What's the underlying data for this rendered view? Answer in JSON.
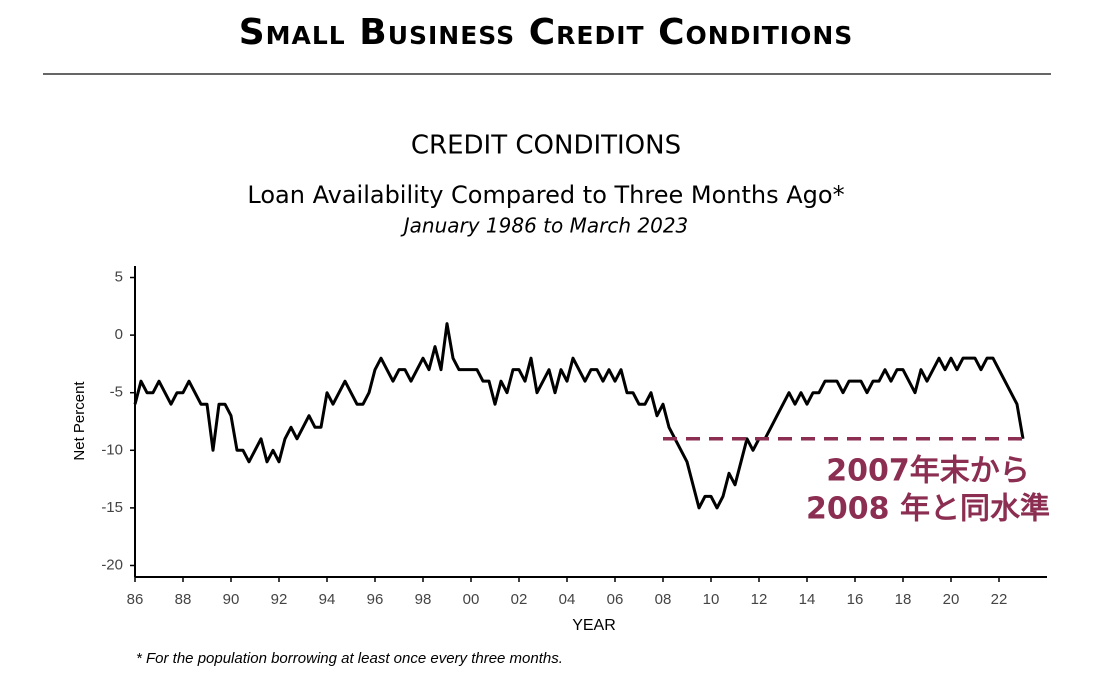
{
  "page_title": "Small Business Credit Conditions",
  "chart_data": {
    "type": "line",
    "title": "CREDIT CONDITIONS",
    "subtitle": "Loan Availability Compared to Three Months Ago*",
    "date_range": "January 1986 to March 2023",
    "x_label": "YEAR",
    "y_label": "Net Percent",
    "footnote": "* For the population borrowing at least once every three months.",
    "annotation": [
      "2007年末から",
      "2008 年と同水準"
    ],
    "reference_line": {
      "value": -9,
      "x": [
        2008,
        2023.25
      ],
      "color": "#8b2e52"
    },
    "xlim": [
      1986,
      2024
    ],
    "ylim": [
      -21,
      6
    ],
    "yticks": [
      -20,
      -15,
      -10,
      -5,
      0,
      5
    ],
    "xticks": [
      {
        "value": 1986,
        "label": "86"
      },
      {
        "value": 1988,
        "label": "88"
      },
      {
        "value": 1990,
        "label": "90"
      },
      {
        "value": 1992,
        "label": "92"
      },
      {
        "value": 1994,
        "label": "94"
      },
      {
        "value": 1996,
        "label": "96"
      },
      {
        "value": 1998,
        "label": "98"
      },
      {
        "value": 2000,
        "label": "00"
      },
      {
        "value": 2002,
        "label": "02"
      },
      {
        "value": 2004,
        "label": "04"
      },
      {
        "value": 2006,
        "label": "06"
      },
      {
        "value": 2008,
        "label": "08"
      },
      {
        "value": 2010,
        "label": "10"
      },
      {
        "value": 2012,
        "label": "12"
      },
      {
        "value": 2014,
        "label": "14"
      },
      {
        "value": 2016,
        "label": "16"
      },
      {
        "value": 2018,
        "label": "18"
      },
      {
        "value": 2020,
        "label": "20"
      },
      {
        "value": 2022,
        "label": "22"
      }
    ],
    "x": [
      1986,
      1986.25,
      1986.5,
      1986.75,
      1987,
      1987.25,
      1987.5,
      1987.75,
      1988,
      1988.25,
      1988.5,
      1988.75,
      1989,
      1989.25,
      1989.5,
      1989.75,
      1990,
      1990.25,
      1990.5,
      1990.75,
      1991,
      1991.25,
      1991.5,
      1991.75,
      1992,
      1992.25,
      1992.5,
      1992.75,
      1993,
      1993.25,
      1993.5,
      1993.75,
      1994,
      1994.25,
      1994.5,
      1994.75,
      1995,
      1995.25,
      1995.5,
      1995.75,
      1996,
      1996.25,
      1996.5,
      1996.75,
      1997,
      1997.25,
      1997.5,
      1997.75,
      1998,
      1998.25,
      1998.5,
      1998.75,
      1999,
      1999.25,
      1999.5,
      1999.75,
      2000,
      2000.25,
      2000.5,
      2000.75,
      2001,
      2001.25,
      2001.5,
      2001.75,
      2002,
      2002.25,
      2002.5,
      2002.75,
      2003,
      2003.25,
      2003.5,
      2003.75,
      2004,
      2004.25,
      2004.5,
      2004.75,
      2005,
      2005.25,
      2005.5,
      2005.75,
      2006,
      2006.25,
      2006.5,
      2006.75,
      2007,
      2007.25,
      2007.5,
      2007.75,
      2008,
      2008.25,
      2008.5,
      2008.75,
      2009,
      2009.25,
      2009.5,
      2009.75,
      2010,
      2010.25,
      2010.5,
      2010.75,
      2011,
      2011.25,
      2011.5,
      2011.75,
      2012,
      2012.25,
      2012.5,
      2012.75,
      2013,
      2013.25,
      2013.5,
      2013.75,
      2014,
      2014.25,
      2014.5,
      2014.75,
      2015,
      2015.25,
      2015.5,
      2015.75,
      2016,
      2016.25,
      2016.5,
      2016.75,
      2017,
      2017.25,
      2017.5,
      2017.75,
      2018,
      2018.25,
      2018.5,
      2018.75,
      2019,
      2019.25,
      2019.5,
      2019.75,
      2020,
      2020.25,
      2020.5,
      2020.75,
      2021,
      2021.25,
      2021.5,
      2021.75,
      2022,
      2022.25,
      2022.5,
      2022.75,
      2023
    ],
    "series": [
      {
        "name": "Net Percent",
        "color": "#000000",
        "values": [
          -6,
          -4,
          -5,
          -5,
          -4,
          -5,
          -6,
          -5,
          -5,
          -4,
          -5,
          -6,
          -6,
          -10,
          -6,
          -6,
          -7,
          -10,
          -10,
          -11,
          -10,
          -9,
          -11,
          -10,
          -11,
          -9,
          -8,
          -9,
          -8,
          -7,
          -8,
          -8,
          -5,
          -6,
          -5,
          -4,
          -5,
          -6,
          -6,
          -5,
          -3,
          -2,
          -3,
          -4,
          -3,
          -3,
          -4,
          -3,
          -2,
          -3,
          -1,
          -3,
          1,
          -2,
          -3,
          -3,
          -3,
          -3,
          -4,
          -4,
          -6,
          -4,
          -5,
          -3,
          -3,
          -4,
          -2,
          -5,
          -4,
          -3,
          -5,
          -3,
          -4,
          -2,
          -3,
          -4,
          -3,
          -3,
          -4,
          -3,
          -4,
          -3,
          -5,
          -5,
          -6,
          -6,
          -5,
          -7,
          -6,
          -8,
          -9,
          -10,
          -11,
          -13,
          -15,
          -14,
          -14,
          -15,
          -14,
          -12,
          -13,
          -11,
          -9,
          -10,
          -9,
          -9,
          -8,
          -7,
          -6,
          -5,
          -6,
          -5,
          -6,
          -5,
          -5,
          -4,
          -4,
          -4,
          -5,
          -4,
          -4,
          -4,
          -5,
          -4,
          -4,
          -3,
          -4,
          -3,
          -3,
          -4,
          -5,
          -3,
          -4,
          -3,
          -2,
          -3,
          -2,
          -3,
          -2,
          -2,
          -2,
          -3,
          -2,
          -2,
          -3,
          -4,
          -5,
          -6,
          -9
        ]
      }
    ]
  }
}
